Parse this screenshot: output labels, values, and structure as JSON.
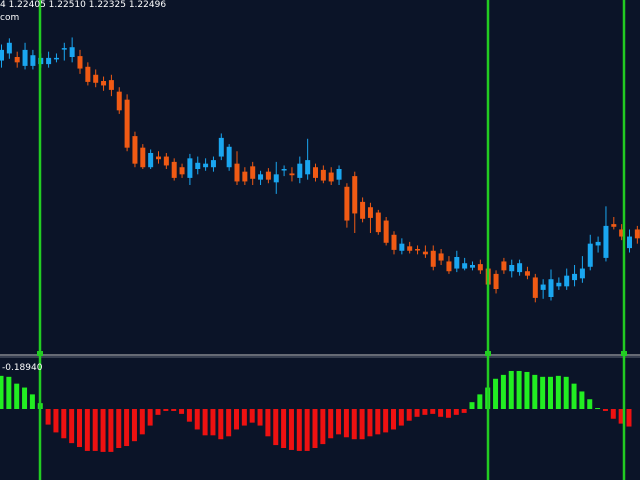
{
  "header": {
    "ohlc_text": "4  1.22405  1.22510  1.22325  1.22496",
    "site_text": "com"
  },
  "indicator": {
    "value_label": "-0.18940"
  },
  "colors": {
    "background": "#0b1428",
    "bull_candle": "#1aa6f0",
    "bear_candle": "#f05a14",
    "special_candle": "#c8743a",
    "vertical_marker": "#22cc22",
    "separator": "#c0c0c0",
    "hist_positive": "#22ee22",
    "hist_negative": "#ee1111",
    "text": "#ffffff"
  },
  "chart_data": {
    "type": "candlestick",
    "price_range": [
      100,
      460
    ],
    "candles": [
      {
        "o": 420,
        "c": 432,
        "h": 438,
        "l": 412,
        "bull": true
      },
      {
        "o": 428,
        "c": 440,
        "h": 445,
        "l": 422,
        "bull": true
      },
      {
        "o": 424,
        "c": 418,
        "h": 430,
        "l": 412,
        "bull": false
      },
      {
        "o": 414,
        "c": 432,
        "h": 440,
        "l": 410,
        "bull": true
      },
      {
        "o": 414,
        "c": 426,
        "h": 432,
        "l": 410,
        "bull": true
      },
      {
        "o": 416,
        "c": 423,
        "h": 428,
        "l": 412,
        "bull": true
      },
      {
        "o": 416,
        "c": 423,
        "h": 430,
        "l": 412,
        "bull": true
      },
      {
        "o": 423,
        "c": 423,
        "h": 428,
        "l": 418,
        "bull": true
      },
      {
        "o": 434,
        "c": 434,
        "h": 440,
        "l": 420,
        "bull": true
      },
      {
        "o": 435,
        "c": 424,
        "h": 446,
        "l": 418,
        "bull": true
      },
      {
        "o": 425,
        "c": 411,
        "h": 432,
        "l": 405,
        "bull": false
      },
      {
        "o": 413,
        "c": 396,
        "h": 418,
        "l": 392,
        "bull": false
      },
      {
        "o": 404,
        "c": 395,
        "h": 410,
        "l": 390,
        "bull": false
      },
      {
        "o": 397,
        "c": 392,
        "h": 402,
        "l": 386,
        "bull": false
      },
      {
        "o": 398,
        "c": 387,
        "h": 404,
        "l": 380,
        "bull": false
      },
      {
        "o": 385,
        "c": 364,
        "h": 390,
        "l": 360,
        "bull": false
      },
      {
        "o": 376,
        "c": 322,
        "h": 382,
        "l": 318,
        "bull": false
      },
      {
        "o": 335,
        "c": 304,
        "h": 340,
        "l": 300,
        "bull": false
      },
      {
        "o": 322,
        "c": 300,
        "h": 326,
        "l": 298,
        "bull": false
      },
      {
        "o": 300,
        "c": 316,
        "h": 320,
        "l": 298,
        "bull": true
      },
      {
        "o": 312,
        "c": 309,
        "h": 318,
        "l": 304,
        "bull": false
      },
      {
        "o": 312,
        "c": 302,
        "h": 316,
        "l": 298,
        "bull": false
      },
      {
        "o": 306,
        "c": 288,
        "h": 310,
        "l": 285,
        "bull": false
      },
      {
        "o": 300,
        "c": 292,
        "h": 304,
        "l": 288,
        "bull": false
      },
      {
        "o": 288,
        "c": 310,
        "h": 315,
        "l": 280,
        "bull": true
      },
      {
        "o": 298,
        "c": 305,
        "h": 312,
        "l": 292,
        "bull": true
      },
      {
        "o": 300,
        "c": 304,
        "h": 310,
        "l": 296,
        "bull": true
      },
      {
        "o": 300,
        "c": 308,
        "h": 312,
        "l": 295,
        "bull": true
      },
      {
        "o": 333,
        "c": 312,
        "h": 338,
        "l": 308,
        "bull": true
      },
      {
        "o": 323,
        "c": 300,
        "h": 326,
        "l": 296,
        "bull": true
      },
      {
        "o": 304,
        "c": 284,
        "h": 318,
        "l": 280,
        "bull": false
      },
      {
        "o": 295,
        "c": 284,
        "h": 300,
        "l": 280,
        "bull": false
      },
      {
        "o": 301,
        "c": 287,
        "h": 306,
        "l": 280,
        "bull": false
      },
      {
        "o": 286,
        "c": 292,
        "h": 296,
        "l": 280,
        "bull": true
      },
      {
        "o": 295,
        "c": 286,
        "h": 299,
        "l": 282,
        "bull": false
      },
      {
        "o": 292,
        "c": 283,
        "h": 306,
        "l": 270,
        "bull": true
      },
      {
        "o": 298,
        "c": 298,
        "h": 302,
        "l": 290,
        "bull": true
      },
      {
        "o": 293,
        "c": 291,
        "h": 300,
        "l": 284,
        "bull": false
      },
      {
        "o": 288,
        "c": 304,
        "h": 312,
        "l": 282,
        "bull": true
      },
      {
        "o": 292,
        "c": 308,
        "h": 332,
        "l": 286,
        "bull": true
      },
      {
        "o": 300,
        "c": 288,
        "h": 304,
        "l": 284,
        "bull": false
      },
      {
        "o": 297,
        "c": 285,
        "h": 302,
        "l": 282,
        "bull": false
      },
      {
        "o": 294,
        "c": 284,
        "h": 300,
        "l": 280,
        "bull": false
      },
      {
        "o": 286,
        "c": 298,
        "h": 302,
        "l": 280,
        "bull": true
      },
      {
        "o": 278,
        "c": 240,
        "h": 282,
        "l": 232,
        "bull": false
      },
      {
        "o": 290,
        "c": 248,
        "h": 295,
        "l": 226,
        "bull": false
      },
      {
        "o": 261,
        "c": 242,
        "h": 266,
        "l": 238,
        "bull": false
      },
      {
        "o": 255,
        "c": 243,
        "h": 260,
        "l": 226,
        "bull": false
      },
      {
        "o": 249,
        "c": 227,
        "h": 252,
        "l": 224,
        "bull": false
      },
      {
        "o": 240,
        "c": 215,
        "h": 244,
        "l": 212,
        "bull": false
      },
      {
        "o": 224,
        "c": 207,
        "h": 228,
        "l": 202,
        "bull": false
      },
      {
        "o": 206,
        "c": 214,
        "h": 220,
        "l": 202,
        "bull": true
      },
      {
        "o": 211,
        "c": 206,
        "h": 216,
        "l": 203,
        "bull": false
      },
      {
        "o": 208,
        "c": 207,
        "h": 212,
        "l": 202,
        "bull": false
      },
      {
        "o": 205,
        "c": 202,
        "h": 212,
        "l": 198,
        "bull": false
      },
      {
        "o": 206,
        "c": 188,
        "h": 212,
        "l": 184,
        "bull": false
      },
      {
        "o": 203,
        "c": 195,
        "h": 208,
        "l": 190,
        "bull": false
      },
      {
        "o": 194,
        "c": 183,
        "h": 200,
        "l": 180,
        "bull": false
      },
      {
        "o": 186,
        "c": 199,
        "h": 206,
        "l": 182,
        "bull": true
      },
      {
        "o": 186,
        "c": 192,
        "h": 198,
        "l": 184,
        "bull": true
      },
      {
        "o": 187,
        "c": 190,
        "h": 194,
        "l": 184,
        "bull": true
      },
      {
        "o": 191,
        "c": 184,
        "h": 196,
        "l": 180,
        "bull": false
      },
      {
        "o": 186,
        "c": 168,
        "h": 190,
        "l": 162,
        "bull": false
      },
      {
        "o": 180,
        "c": 163,
        "h": 184,
        "l": 158,
        "bull": false
      },
      {
        "o": 194,
        "c": 184,
        "h": 198,
        "l": 180,
        "bull": false
      },
      {
        "o": 183,
        "c": 190,
        "h": 196,
        "l": 176,
        "bull": true
      },
      {
        "o": 182,
        "c": 192,
        "h": 196,
        "l": 178,
        "bull": true
      },
      {
        "o": 183,
        "c": 178,
        "h": 188,
        "l": 174,
        "bull": false
      },
      {
        "o": 176,
        "c": 153,
        "h": 180,
        "l": 148,
        "bull": false
      },
      {
        "o": 162,
        "c": 168,
        "h": 174,
        "l": 152,
        "bull": true
      },
      {
        "o": 154,
        "c": 174,
        "h": 185,
        "l": 150,
        "bull": true
      },
      {
        "o": 166,
        "c": 170,
        "h": 176,
        "l": 162,
        "bull": true
      },
      {
        "o": 166,
        "c": 178,
        "h": 186,
        "l": 162,
        "bull": true
      },
      {
        "o": 173,
        "c": 180,
        "h": 190,
        "l": 166,
        "bull": true
      },
      {
        "o": 175,
        "c": 186,
        "h": 200,
        "l": 170,
        "bull": true
      },
      {
        "o": 188,
        "c": 214,
        "h": 224,
        "l": 184,
        "bull": true
      },
      {
        "o": 212,
        "c": 216,
        "h": 222,
        "l": 204,
        "bull": true
      },
      {
        "o": 198,
        "c": 234,
        "h": 256,
        "l": 194,
        "bull": true
      },
      {
        "o": 236,
        "c": 233,
        "h": 244,
        "l": 230,
        "bull": false
      },
      {
        "o": 230,
        "c": 222,
        "h": 236,
        "l": 218,
        "bull": false
      },
      {
        "o": 209,
        "c": 222,
        "h": 230,
        "l": 204,
        "bull": true
      },
      {
        "o": 220,
        "c": 230,
        "h": 234,
        "l": 214,
        "bull": false
      },
      {
        "o": 214,
        "c": 226,
        "h": 234,
        "l": 208,
        "bull": true
      },
      {
        "o": 214,
        "c": 229,
        "h": 236,
        "l": 210,
        "bull": false
      },
      {
        "o": 215,
        "c": 272,
        "h": 277,
        "l": 210,
        "bull": true
      },
      {
        "o": 273,
        "c": 278,
        "h": 286,
        "l": 262,
        "bull": true
      },
      {
        "o": 265,
        "c": 304,
        "h": 310,
        "l": 256,
        "bull": true
      },
      {
        "o": 286,
        "c": 308,
        "h": 310,
        "l": 282,
        "bull": true
      },
      {
        "o": 307,
        "c": 307,
        "h": 314,
        "l": 296,
        "bull": false
      },
      {
        "o": 310,
        "c": 297,
        "h": 312,
        "l": 294,
        "bull": false
      },
      {
        "o": 306,
        "c": 295,
        "h": 312,
        "l": 290,
        "bull": false
      },
      {
        "o": 290,
        "c": 290,
        "h": 302,
        "l": 266,
        "bull": false
      },
      {
        "o": 284,
        "c": 290,
        "h": 296,
        "l": 268,
        "bull": false
      }
    ],
    "histogram_range": [
      -70,
      40
    ],
    "histogram": [
      34,
      33,
      26,
      22,
      15,
      6,
      -16,
      -24,
      -30,
      -35,
      -39,
      -43,
      -43,
      -44,
      -44,
      -40,
      -38,
      -33,
      -26,
      -17,
      -6,
      -2,
      -2,
      -5,
      -13,
      -21,
      -27,
      -27,
      -31,
      -28,
      -21,
      -17,
      -14,
      -17,
      -28,
      -37,
      -40,
      -42,
      -43,
      -43,
      -40,
      -36,
      -30,
      -26,
      -29,
      -31,
      -31,
      -28,
      -26,
      -24,
      -21,
      -17,
      -12,
      -8,
      -6,
      -5,
      -8,
      -9,
      -6,
      -4,
      7,
      15,
      22,
      31,
      35,
      39,
      39,
      38,
      35,
      33,
      33,
      34,
      33,
      26,
      18,
      10,
      1,
      -2,
      -10,
      -15,
      -18
    ]
  }
}
